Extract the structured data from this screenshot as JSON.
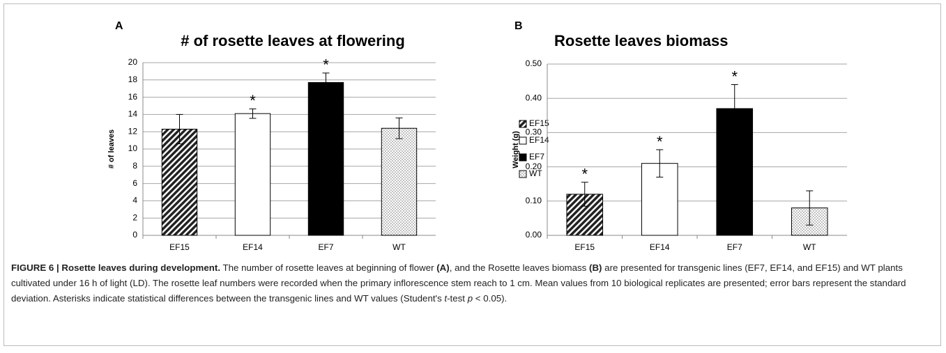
{
  "chart_data": [
    {
      "type": "bar",
      "panel": "A",
      "title": "# of rosette leaves at flowering",
      "y_label": "# of leaves",
      "categories": [
        "EF15",
        "EF14",
        "EF7",
        "WT"
      ],
      "values": [
        12.3,
        14.1,
        17.7,
        12.4
      ],
      "errors": [
        1.7,
        0.55,
        1.1,
        1.2
      ],
      "fills": [
        "hatch",
        "white",
        "black",
        "dots"
      ],
      "asterisk": "*",
      "significant": [
        false,
        true,
        true,
        false
      ],
      "ylim": [
        0,
        20
      ],
      "yticks": [
        0,
        2,
        4,
        6,
        8,
        10,
        12,
        14,
        16,
        18,
        20
      ],
      "grid": true,
      "legend": "right"
    },
    {
      "type": "bar",
      "panel": "B",
      "title": "Rosette leaves biomass",
      "y_label": "Weight (g)",
      "categories": [
        "EF15",
        "EF14",
        "EF7",
        "WT"
      ],
      "values": [
        0.12,
        0.21,
        0.37,
        0.08
      ],
      "errors": [
        0.035,
        0.04,
        0.07,
        0.05
      ],
      "fills": [
        "hatch",
        "white",
        "black",
        "dots"
      ],
      "asterisk": "*",
      "significant": [
        true,
        true,
        true,
        false
      ],
      "ylim": [
        0,
        0.5
      ],
      "yticks": [
        {
          "value": 0,
          "label": "0.00"
        },
        {
          "value": 0.1,
          "label": "0.10"
        },
        {
          "value": 0.2,
          "label": "0.20"
        },
        {
          "value": 0.3,
          "label": "0.30"
        },
        {
          "value": 0.4,
          "label": "0.40"
        },
        {
          "value": 0.5,
          "label": "0.50"
        }
      ],
      "grid": true
    }
  ],
  "caption": [
    {
      "text": "FIGURE 6 | Rosette leaves during development.",
      "style": "bold"
    },
    {
      "text": " The number of rosette leaves at beginning of flower ",
      "style": "normal"
    },
    {
      "text": "(A)",
      "style": "bold"
    },
    {
      "text": ", and the Rosette leaves biomass ",
      "style": "normal"
    },
    {
      "text": "(B)",
      "style": "bold"
    },
    {
      "text": " are presented for transgenic lines (EF7, EF14, and EF15) and WT plants cultivated under 16 h of light (LD). The rosette leaf numbers were recorded when the primary inflorescence stem reach to 1 cm. Mean values from 10 biological replicates are presented; error bars represent the standard deviation. Asterisks indicate statistical differences between the transgenic lines and WT values (Student's ",
      "style": "normal"
    },
    {
      "text": "t",
      "style": "italic"
    },
    {
      "text": "-test ",
      "style": "normal"
    },
    {
      "text": "p",
      "style": "italic"
    },
    {
      "text": " < 0.05).",
      "style": "normal"
    }
  ]
}
